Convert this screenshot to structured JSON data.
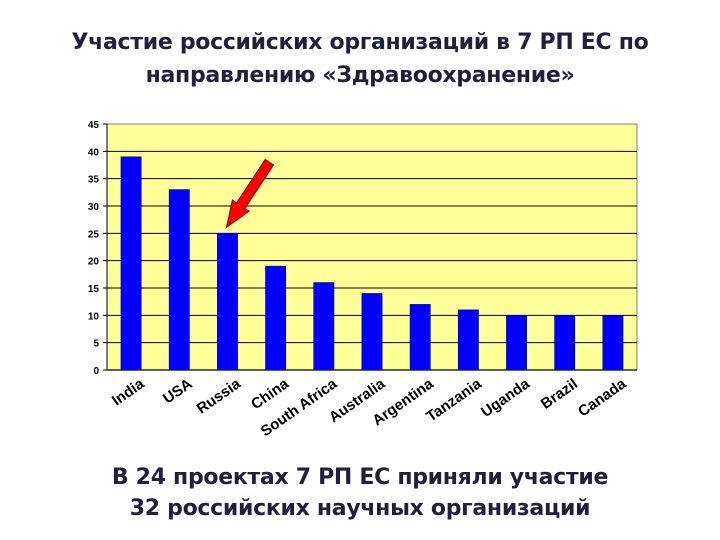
{
  "title_line1": "Участие российских организаций в 7 РП ЕС по",
  "title_line2": "направлению «Здравоохранение»",
  "footer_line1": "В 24 проектах 7 РП ЕС приняли участие",
  "footer_line2": "32 российских научных организаций",
  "colors": {
    "plot_background": "#ffff99",
    "bar": "#0000ff",
    "arrow": "#ff0000"
  },
  "chart_data": {
    "type": "bar",
    "title": "Участие российских организаций в 7 РП ЕС по направлению «Здравоохранение»",
    "categories": [
      "India",
      "USA",
      "Russia",
      "China",
      "South Africa",
      "Australia",
      "Argentina",
      "Tanzania",
      "Uganda",
      "Brazil",
      "Canada"
    ],
    "values": [
      39,
      33,
      25,
      19,
      16,
      14,
      12,
      11,
      10,
      10,
      10
    ],
    "ylim": [
      0,
      45
    ],
    "yticks": [
      0,
      5,
      10,
      15,
      20,
      25,
      30,
      35,
      40,
      45
    ],
    "grid": true,
    "highlight_category": "Russia",
    "highlight_marker": "arrow"
  }
}
